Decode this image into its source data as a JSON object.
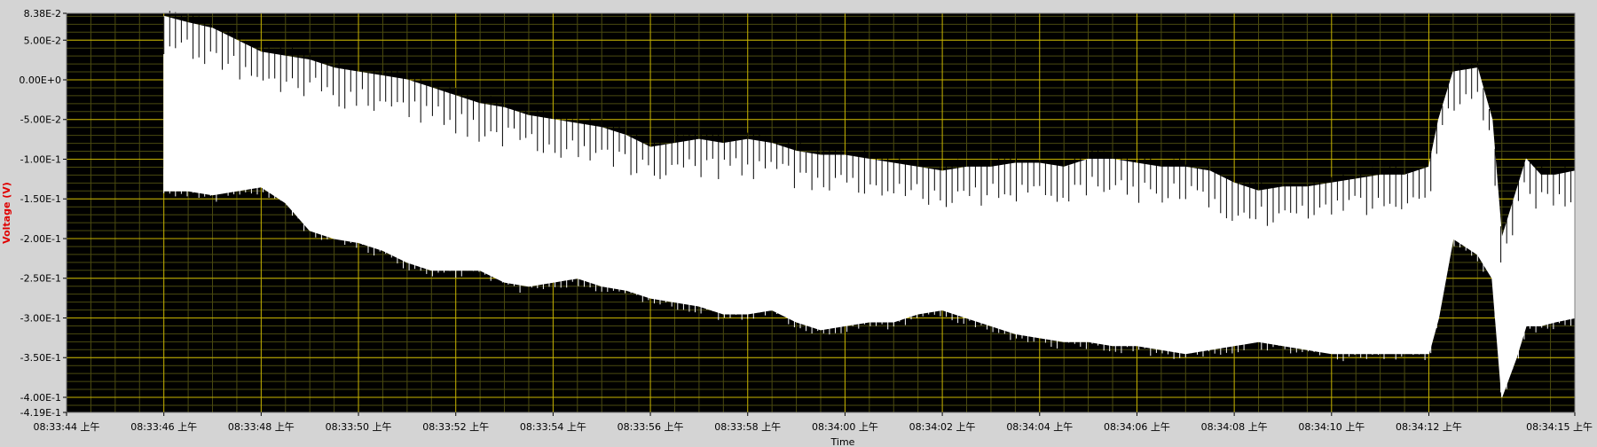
{
  "chart_data": {
    "type": "line",
    "title": "",
    "xlabel": "Time",
    "ylabel": "Voltage (V)",
    "ylim": [
      -0.419,
      0.0838
    ],
    "xlim": [
      0,
      31
    ],
    "grid": true,
    "colors": {
      "plot_background": "#000000",
      "grid_major": "#c8b400",
      "grid_minor": "#4a4a10",
      "trace": "#ffffff",
      "ylabel": "#e00000",
      "frame_background": "#d4d4d4",
      "tick_text": "#000000"
    },
    "y_ticks": [
      {
        "value": 0.0838,
        "label": "8.38E-2"
      },
      {
        "value": 0.05,
        "label": "5.00E-2"
      },
      {
        "value": 0.0,
        "label": "0.00E+0"
      },
      {
        "value": -0.05,
        "label": "-5.00E-2"
      },
      {
        "value": -0.1,
        "label": "-1.00E-1"
      },
      {
        "value": -0.15,
        "label": "-1.50E-1"
      },
      {
        "value": -0.2,
        "label": "-2.00E-1"
      },
      {
        "value": -0.25,
        "label": "-2.50E-1"
      },
      {
        "value": -0.3,
        "label": "-3.00E-1"
      },
      {
        "value": -0.35,
        "label": "-3.50E-1"
      },
      {
        "value": -0.4,
        "label": "-4.00E-1"
      },
      {
        "value": -0.419,
        "label": "-4.19E-1"
      }
    ],
    "x_ticks": [
      {
        "value": 0,
        "label": "08:33:44 上午"
      },
      {
        "value": 2,
        "label": "08:33:46 上午"
      },
      {
        "value": 4,
        "label": "08:33:48 上午"
      },
      {
        "value": 6,
        "label": "08:33:50 上午"
      },
      {
        "value": 8,
        "label": "08:33:52 上午"
      },
      {
        "value": 10,
        "label": "08:33:54 上午"
      },
      {
        "value": 12,
        "label": "08:33:56 上午"
      },
      {
        "value": 14,
        "label": "08:33:58 上午"
      },
      {
        "value": 16,
        "label": "08:34:00 上午"
      },
      {
        "value": 18,
        "label": "08:34:02 上午"
      },
      {
        "value": 20,
        "label": "08:34:04 上午"
      },
      {
        "value": 22,
        "label": "08:34:06 上午"
      },
      {
        "value": 24,
        "label": "08:34:08 上午"
      },
      {
        "value": 26,
        "label": "08:34:10 上午"
      },
      {
        "value": 28,
        "label": "08:34:12 上午"
      },
      {
        "value": 31,
        "label": "08:34:15 上午"
      }
    ],
    "envelope": {
      "x": [
        2.0,
        2.5,
        3.0,
        3.5,
        4.0,
        4.5,
        5.0,
        5.5,
        6.0,
        6.5,
        7.0,
        7.5,
        8.0,
        8.5,
        9.0,
        9.5,
        10.0,
        10.5,
        11.0,
        11.5,
        12.0,
        12.5,
        13.0,
        13.5,
        14.0,
        14.5,
        15.0,
        15.5,
        16.0,
        16.5,
        17.0,
        17.5,
        18.0,
        18.5,
        19.0,
        19.5,
        20.0,
        20.5,
        21.0,
        21.5,
        22.0,
        22.5,
        23.0,
        23.5,
        24.0,
        24.5,
        25.0,
        25.5,
        26.0,
        26.5,
        27.0,
        27.5,
        28.0,
        28.2,
        28.5,
        29.0,
        29.3,
        29.5,
        29.8,
        30.0,
        30.3,
        30.6,
        31.0
      ],
      "upper": [
        0.08,
        0.072,
        0.065,
        0.05,
        0.035,
        0.03,
        0.025,
        0.015,
        0.01,
        0.005,
        0.0,
        -0.01,
        -0.02,
        -0.03,
        -0.035,
        -0.045,
        -0.05,
        -0.055,
        -0.06,
        -0.07,
        -0.085,
        -0.08,
        -0.075,
        -0.08,
        -0.075,
        -0.08,
        -0.09,
        -0.095,
        -0.095,
        -0.1,
        -0.105,
        -0.11,
        -0.115,
        -0.11,
        -0.11,
        -0.105,
        -0.105,
        -0.11,
        -0.1,
        -0.1,
        -0.105,
        -0.11,
        -0.11,
        -0.115,
        -0.13,
        -0.14,
        -0.135,
        -0.135,
        -0.13,
        -0.125,
        -0.12,
        -0.12,
        -0.11,
        -0.05,
        0.01,
        0.015,
        -0.05,
        -0.2,
        -0.14,
        -0.1,
        -0.12,
        -0.12,
        -0.115
      ],
      "lower": [
        -0.14,
        -0.14,
        -0.145,
        -0.14,
        -0.135,
        -0.155,
        -0.19,
        -0.2,
        -0.205,
        -0.215,
        -0.23,
        -0.24,
        -0.24,
        -0.24,
        -0.255,
        -0.26,
        -0.255,
        -0.25,
        -0.26,
        -0.265,
        -0.275,
        -0.28,
        -0.285,
        -0.295,
        -0.295,
        -0.29,
        -0.305,
        -0.315,
        -0.31,
        -0.305,
        -0.305,
        -0.295,
        -0.29,
        -0.3,
        -0.31,
        -0.32,
        -0.325,
        -0.33,
        -0.33,
        -0.335,
        -0.335,
        -0.34,
        -0.345,
        -0.34,
        -0.335,
        -0.33,
        -0.335,
        -0.34,
        -0.345,
        -0.345,
        -0.345,
        -0.345,
        -0.345,
        -0.3,
        -0.2,
        -0.22,
        -0.25,
        -0.4,
        -0.35,
        -0.31,
        -0.31,
        -0.305,
        -0.3
      ]
    }
  }
}
